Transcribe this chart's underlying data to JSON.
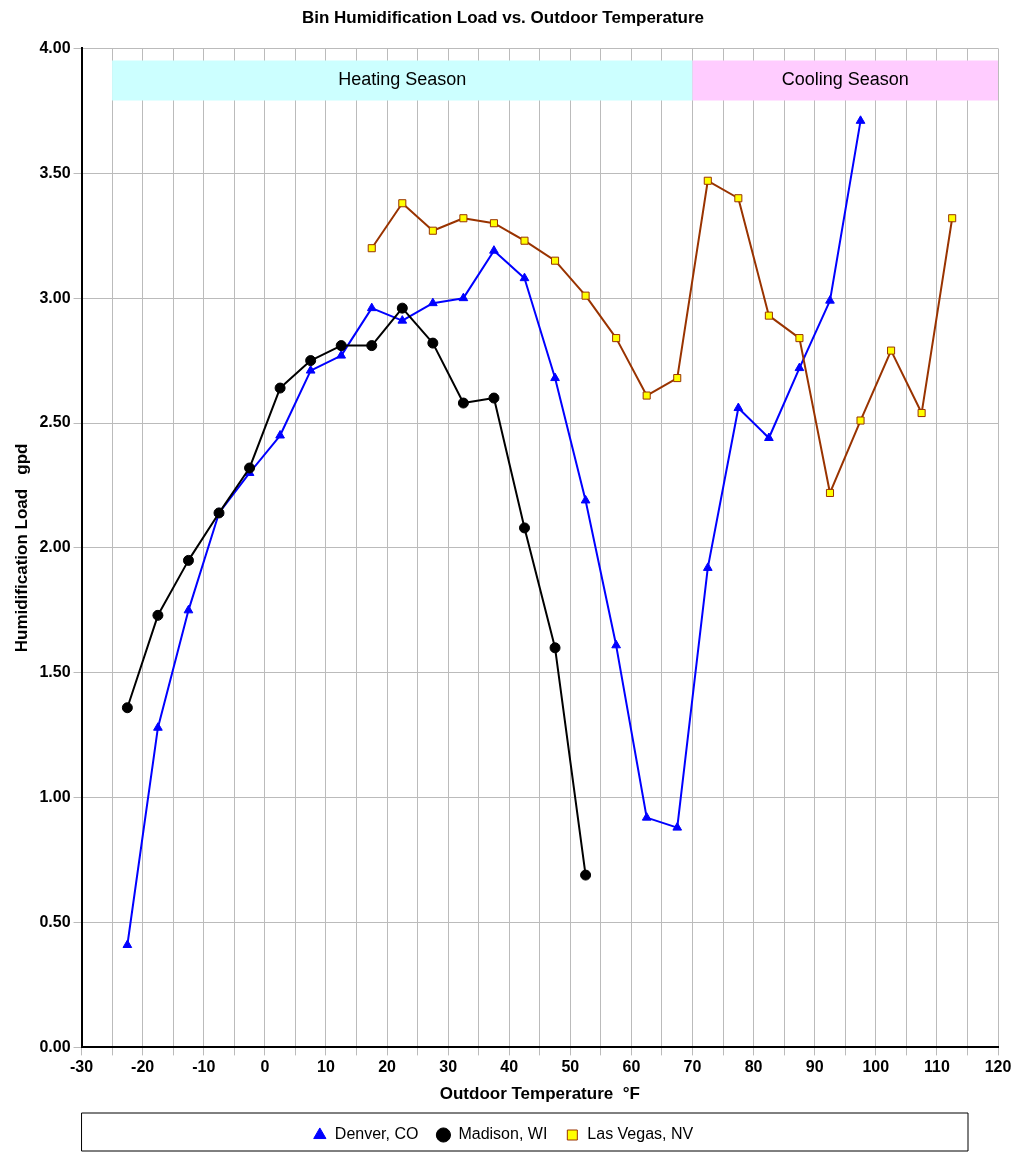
{
  "chart_data": {
    "type": "line",
    "title": "Bin Humidification Load vs. Outdoor Temperature",
    "xlabel": "Outdoor Temperature  °F",
    "ylabel": "Humidification Load   gpd",
    "xlim": [
      -30,
      120
    ],
    "xticks": [
      -30,
      {
        "value": -25,
        "label": null
      },
      -20,
      {
        "value": -15,
        "label": null
      },
      -10,
      {
        "value": -5,
        "label": null
      },
      0,
      {
        "value": 5,
        "label": null
      },
      10,
      {
        "value": 15,
        "label": null
      },
      20,
      {
        "value": 25,
        "label": null
      },
      30,
      {
        "value": 35,
        "label": null
      },
      40,
      {
        "value": 45,
        "label": null
      },
      50,
      {
        "value": 55,
        "label": null
      },
      60,
      {
        "value": 65,
        "label": null
      },
      70,
      {
        "value": 75,
        "label": null
      },
      80,
      {
        "value": 85,
        "label": null
      },
      90,
      {
        "value": 95,
        "label": null
      },
      100,
      {
        "value": 105,
        "label": null
      },
      110,
      {
        "value": 115,
        "label": null
      },
      120
    ],
    "ylim": [
      0,
      4
    ],
    "yticks": [
      {
        "value": 0,
        "label": "0.00"
      },
      {
        "value": 0.5,
        "label": "0.50"
      },
      {
        "value": 1,
        "label": "1.00"
      },
      {
        "value": 1.5,
        "label": "1.50"
      },
      {
        "value": 2,
        "label": "2.00"
      },
      {
        "value": 2.5,
        "label": "2.50"
      },
      {
        "value": 3,
        "label": "3.00"
      },
      {
        "value": 3.5,
        "label": "3.50"
      },
      {
        "value": 4,
        "label": "4.00"
      }
    ],
    "grid": true,
    "legend": "bottom",
    "bands": [
      {
        "axis": "x",
        "from": -25,
        "to": 70,
        "label": "Heating Season",
        "color": "#ccffff"
      },
      {
        "axis": "x",
        "from": 70,
        "to": 120,
        "label": "Cooling Season",
        "color": "#ffccff"
      }
    ],
    "series": [
      {
        "name": "Denver, CO",
        "color": "#0000ff",
        "marker": "triangle",
        "x": [
          -22.5,
          -17.5,
          -12.5,
          -7.5,
          -2.5,
          2.5,
          7.5,
          12.5,
          17.5,
          22.5,
          27.5,
          32.5,
          37.5,
          42.5,
          47.5,
          52.5,
          57.5,
          62.5,
          67.5,
          72.5,
          77.5,
          82.5,
          87.5,
          92.5,
          97.5
        ],
        "values": [
          0.41,
          1.28,
          1.75,
          2.14,
          2.3,
          2.45,
          2.71,
          2.77,
          2.96,
          2.91,
          2.98,
          3.0,
          3.19,
          3.08,
          2.68,
          2.19,
          1.61,
          0.92,
          0.88,
          1.92,
          2.56,
          2.44,
          2.72,
          2.99,
          3.71
        ]
      },
      {
        "name": "Madison, WI",
        "color": "#000000",
        "marker": "circle",
        "x": [
          -22.5,
          -17.5,
          -12.5,
          -7.5,
          -2.5,
          2.5,
          7.5,
          12.5,
          17.5,
          22.5,
          27.5,
          32.5,
          37.5,
          42.5,
          47.5,
          52.5
        ],
        "values": [
          1.36,
          1.73,
          1.95,
          2.14,
          2.32,
          2.64,
          2.75,
          2.81,
          2.81,
          2.96,
          2.82,
          2.58,
          2.6,
          2.08,
          1.6,
          0.69
        ]
      },
      {
        "name": "Las Vegas, NV",
        "color": "#993300",
        "marker": "square",
        "colors": [
          "#ffff00",
          "#ffff00",
          "#ffff00",
          "#ffff00",
          "#ffff00",
          "#ffff00",
          "#ffff00",
          "#ffff00",
          "#ffff00",
          "#ffff00",
          "#ffff00",
          "#ffff00",
          "#ffff00",
          "#ffff00",
          "#ffff00",
          "#ffff00",
          "#ffff00",
          "#ffff00",
          "#ffff00",
          "#ffff00"
        ],
        "x": [
          17.5,
          22.5,
          27.5,
          32.5,
          37.5,
          42.5,
          47.5,
          52.5,
          57.5,
          62.5,
          67.5,
          72.5,
          77.5,
          82.5,
          87.5,
          92.5,
          97.5,
          102.5,
          107.5,
          112.5
        ],
        "values": [
          3.2,
          3.38,
          3.27,
          3.32,
          3.3,
          3.23,
          3.15,
          3.01,
          2.84,
          2.61,
          2.68,
          3.47,
          3.4,
          2.93,
          2.84,
          2.22,
          2.51,
          2.79,
          2.54,
          3.32
        ]
      }
    ]
  }
}
